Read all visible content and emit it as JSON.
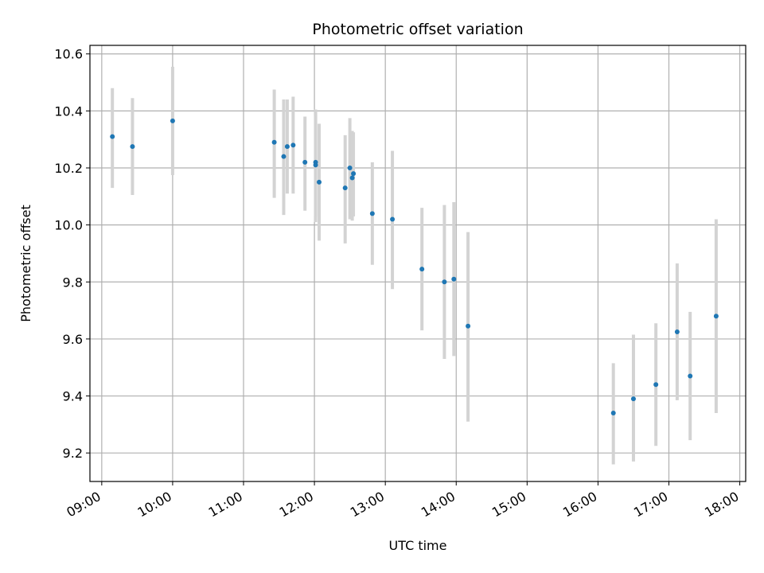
{
  "chart_data": {
    "type": "scatter",
    "title": "Photometric offset variation",
    "xlabel": "UTC time",
    "ylabel": "Photometric offset",
    "xlim": [
      "08:50",
      "18:05"
    ],
    "ylim": [
      9.1,
      10.63
    ],
    "x_ticks": [
      "09:00",
      "10:00",
      "11:00",
      "12:00",
      "13:00",
      "14:00",
      "15:00",
      "16:00",
      "17:00",
      "18:00"
    ],
    "y_ticks": [
      9.2,
      9.4,
      9.6,
      9.8,
      10.0,
      10.2,
      10.4,
      10.6
    ],
    "y_tick_labels": [
      "9.2",
      "9.4",
      "9.6",
      "9.8",
      "10.0",
      "10.2",
      "10.4",
      "10.6"
    ],
    "grid": true,
    "point_color": "#1f77b4",
    "errorbar_color": "#d3d3d3",
    "points": [
      {
        "x": "09:09",
        "y": 10.31,
        "lo": 10.13,
        "hi": 10.48
      },
      {
        "x": "09:26",
        "y": 10.275,
        "lo": 10.105,
        "hi": 10.445
      },
      {
        "x": "10:00",
        "y": 10.365,
        "lo": 10.175,
        "hi": 10.555
      },
      {
        "x": "11:26",
        "y": 10.29,
        "lo": 10.095,
        "hi": 10.475
      },
      {
        "x": "11:34",
        "y": 10.24,
        "lo": 10.035,
        "hi": 10.44
      },
      {
        "x": "11:37",
        "y": 10.275,
        "lo": 10.11,
        "hi": 10.44
      },
      {
        "x": "11:42",
        "y": 10.28,
        "lo": 10.11,
        "hi": 10.45
      },
      {
        "x": "11:52",
        "y": 10.22,
        "lo": 10.05,
        "hi": 10.38
      },
      {
        "x": "12:01",
        "y": 10.22,
        "lo": 10.03,
        "hi": 10.405
      },
      {
        "x": "12:01",
        "y": 10.21,
        "lo": 10.01,
        "hi": 10.385
      },
      {
        "x": "12:04",
        "y": 10.15,
        "lo": 9.945,
        "hi": 10.355
      },
      {
        "x": "12:26",
        "y": 10.13,
        "lo": 9.935,
        "hi": 10.315
      },
      {
        "x": "12:30",
        "y": 10.2,
        "lo": 10.02,
        "hi": 10.375
      },
      {
        "x": "12:32",
        "y": 10.165,
        "lo": 10.015,
        "hi": 10.33
      },
      {
        "x": "12:33",
        "y": 10.18,
        "lo": 10.03,
        "hi": 10.325
      },
      {
        "x": "12:49",
        "y": 10.04,
        "lo": 9.86,
        "hi": 10.22
      },
      {
        "x": "13:06",
        "y": 10.02,
        "lo": 9.775,
        "hi": 10.26
      },
      {
        "x": "13:31",
        "y": 9.845,
        "lo": 9.63,
        "hi": 10.06
      },
      {
        "x": "13:50",
        "y": 9.8,
        "lo": 9.53,
        "hi": 10.07
      },
      {
        "x": "13:58",
        "y": 9.81,
        "lo": 9.54,
        "hi": 10.08
      },
      {
        "x": "14:10",
        "y": 9.645,
        "lo": 9.31,
        "hi": 9.975
      },
      {
        "x": "16:13",
        "y": 9.34,
        "lo": 9.16,
        "hi": 9.515
      },
      {
        "x": "16:30",
        "y": 9.39,
        "lo": 9.17,
        "hi": 9.615
      },
      {
        "x": "16:49",
        "y": 9.44,
        "lo": 9.225,
        "hi": 9.655
      },
      {
        "x": "17:07",
        "y": 9.625,
        "lo": 9.385,
        "hi": 9.865
      },
      {
        "x": "17:18",
        "y": 9.47,
        "lo": 9.245,
        "hi": 9.695
      },
      {
        "x": "17:40",
        "y": 9.68,
        "lo": 9.34,
        "hi": 10.02
      }
    ]
  }
}
